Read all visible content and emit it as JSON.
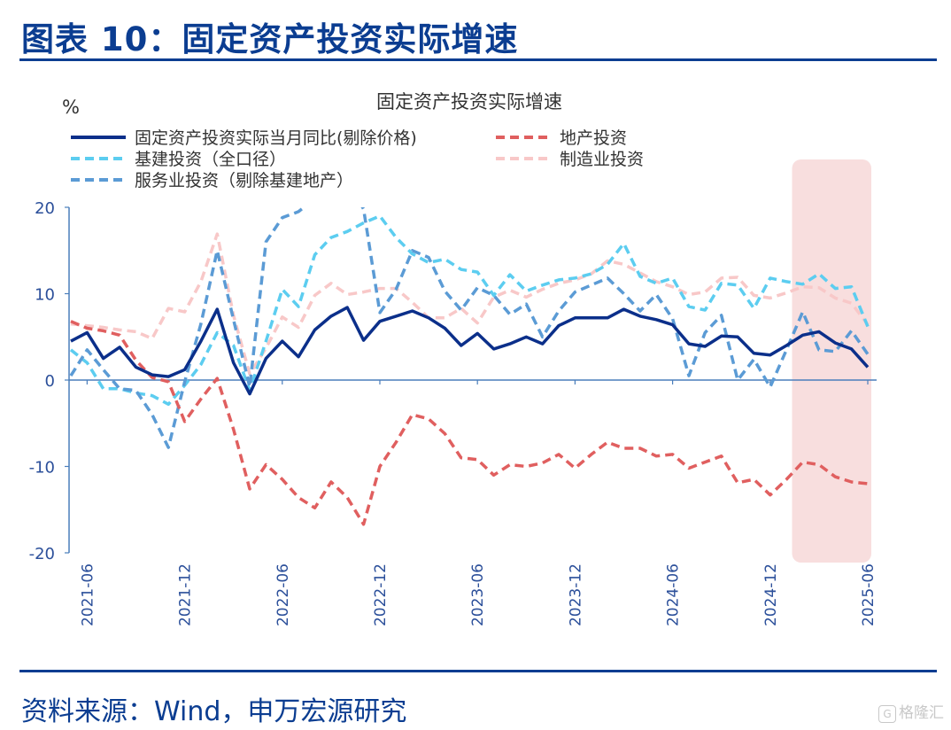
{
  "header": {
    "title": "图表 10：固定资产投资实际增速"
  },
  "footer": {
    "source": "资料来源：Wind，申万宏源研究",
    "watermark": "格隆汇",
    "watermark_logo": "G"
  },
  "chart_data": {
    "type": "line",
    "title": "固定资产投资实际增速",
    "ylabel": "%",
    "ylim": [
      -20,
      20
    ],
    "yticks": [
      20,
      10,
      0,
      -10,
      -20
    ],
    "xtick_labels": [
      "2021-06",
      "2021-12",
      "2022-06",
      "2022-12",
      "2023-06",
      "2023-12",
      "2024-06",
      "2024-12",
      "2025-06"
    ],
    "x": [
      "2021-05",
      "2021-06",
      "2021-07",
      "2021-08",
      "2021-09",
      "2021-10",
      "2021-11",
      "2021-12",
      "2022-01",
      "2022-02",
      "2022-03",
      "2022-04",
      "2022-05",
      "2022-06",
      "2022-07",
      "2022-08",
      "2022-09",
      "2022-10",
      "2022-11",
      "2022-12",
      "2023-01",
      "2023-02",
      "2023-03",
      "2023-04",
      "2023-05",
      "2023-06",
      "2023-07",
      "2023-08",
      "2023-09",
      "2023-10",
      "2023-11",
      "2023-12",
      "2024-01",
      "2024-02",
      "2024-03",
      "2024-04",
      "2024-05",
      "2024-06",
      "2024-07",
      "2024-08",
      "2024-09",
      "2024-10",
      "2024-11",
      "2024-12",
      "2025-01",
      "2025-02",
      "2025-03",
      "2025-04",
      "2025-05",
      "2025-06"
    ],
    "highlight": {
      "start": "2025-02",
      "end": "2025-06",
      "color": "#f8dede"
    },
    "series": [
      {
        "name": "固定资产投资实际当月同比(剔除价格)",
        "color": "#0b2f8a",
        "style": "solid",
        "values": [
          4.5,
          5.5,
          2.5,
          3.8,
          1.5,
          0.6,
          0.4,
          1.2,
          4.5,
          8.2,
          2.0,
          -1.6,
          2.5,
          4.5,
          2.7,
          5.8,
          7.4,
          8.4,
          4.6,
          6.8,
          7.4,
          8.0,
          7.2,
          6.0,
          4.0,
          5.4,
          3.6,
          4.2,
          5.0,
          4.2,
          6.3,
          7.2,
          7.2,
          7.2,
          8.2,
          7.4,
          7.0,
          6.4,
          4.2,
          3.9,
          5.1,
          5.0,
          3.1,
          2.9,
          4.0,
          5.2,
          5.6,
          4.3,
          3.6,
          1.5
        ]
      },
      {
        "name": "地产投资",
        "color": "#e05f5f",
        "style": "dashed",
        "values": [
          6.8,
          6.0,
          5.7,
          5.2,
          2.3,
          0.3,
          -0.2,
          -4.8,
          -2.2,
          0.2,
          -5.7,
          -12.6,
          -9.8,
          -11.5,
          -13.6,
          -14.8,
          -11.8,
          -13.6,
          -16.7,
          -10.0,
          -7.2,
          -4.0,
          -4.5,
          -6.2,
          -9.0,
          -9.2,
          -11.0,
          -9.8,
          -10.0,
          -9.6,
          -8.6,
          -10.2,
          -8.6,
          -7.2,
          -7.9,
          -7.9,
          -8.8,
          -8.6,
          -10.2,
          -9.5,
          -8.8,
          -11.9,
          -11.5,
          -13.3,
          -11.5,
          -9.5,
          -9.8,
          -11.2,
          -11.8,
          -12.0
        ]
      },
      {
        "name": "基建投资（全口径）",
        "color": "#5ccdf0",
        "style": "dashed",
        "values": [
          3.5,
          2.0,
          -1.0,
          -1.0,
          -1.5,
          -1.8,
          -2.8,
          -0.6,
          1.8,
          5.5,
          4.0,
          -1.2,
          4.5,
          10.5,
          8.5,
          14.5,
          16.5,
          17.2,
          18.2,
          19.0,
          16.5,
          14.6,
          13.6,
          14.0,
          12.8,
          12.5,
          9.8,
          12.2,
          10.3,
          11.0,
          11.6,
          11.8,
          12.3,
          13.4,
          15.8,
          12.0,
          11.2,
          11.8,
          8.5,
          8.1,
          11.2,
          11.0,
          8.3,
          11.8,
          11.4,
          11.1,
          12.3,
          10.6,
          10.8,
          6.2
        ]
      },
      {
        "name": "制造业投资",
        "color": "#f8c8c8",
        "style": "dashed",
        "values": [
          6.5,
          6.3,
          6.1,
          5.8,
          5.6,
          4.8,
          8.3,
          7.9,
          11.4,
          16.9,
          7.5,
          0.7,
          3.7,
          7.3,
          6.1,
          9.8,
          11.2,
          9.9,
          10.2,
          10.6,
          10.6,
          9.0,
          7.2,
          7.2,
          8.3,
          6.6,
          9.6,
          10.4,
          9.6,
          10.5,
          11.2,
          11.6,
          12.3,
          13.8,
          13.4,
          12.4,
          11.4,
          10.8,
          9.9,
          10.2,
          11.8,
          11.9,
          9.8,
          9.5,
          10.1,
          10.8,
          10.7,
          9.5,
          8.9,
          6.4
        ]
      },
      {
        "name": "服务业投资（剔除基建地产）",
        "color": "#5b9bd5",
        "style": "dashed",
        "values": [
          0.5,
          3.5,
          1.2,
          -1.0,
          -1.2,
          -4.0,
          -7.8,
          -0.2,
          6.5,
          15.0,
          7.0,
          -0.8,
          16.0,
          18.8,
          19.5,
          21.0,
          22.0,
          23.0,
          19.8,
          7.8,
          10.5,
          15.0,
          14.2,
          10.3,
          8.1,
          10.7,
          9.8,
          7.6,
          8.8,
          5.0,
          8.0,
          10.2,
          11.0,
          11.8,
          10.0,
          8.0,
          9.9,
          7.1,
          0.5,
          5.5,
          7.5,
          0.0,
          2.4,
          -0.8,
          3.5,
          7.9,
          3.5,
          3.3,
          5.7,
          3.0
        ]
      }
    ]
  }
}
